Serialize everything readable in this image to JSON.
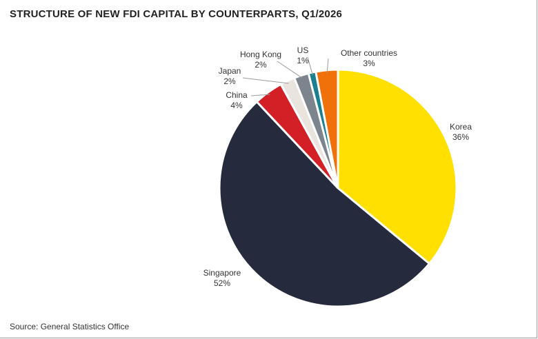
{
  "title": "STRUCTURE OF NEW FDI CAPITAL BY COUNTERPARTS, Q1/2026",
  "source": "Source: General Statistics Office",
  "chart_data": {
    "type": "pie",
    "title": "STRUCTURE OF NEW FDI CAPITAL BY COUNTERPARTS, Q1/2026",
    "start": "12 o'clock",
    "direction": "clockwise",
    "slices": [
      {
        "name": "Korea",
        "value": 36,
        "label": "36%",
        "color": "#FFE000"
      },
      {
        "name": "Singapore",
        "value": 52,
        "label": "52%",
        "color": "#262A3D"
      },
      {
        "name": "China",
        "value": 4,
        "label": "4%",
        "color": "#D31F26"
      },
      {
        "name": "Japan",
        "value": 2,
        "label": "2%",
        "color": "#EAE4DF"
      },
      {
        "name": "Hong Kong",
        "value": 2,
        "label": "2%",
        "color": "#7C848E"
      },
      {
        "name": "US",
        "value": 1,
        "label": "1%",
        "color": "#1A7F8E"
      },
      {
        "name": "Other countries",
        "value": 3,
        "label": "3%",
        "color": "#F0700A"
      }
    ]
  }
}
